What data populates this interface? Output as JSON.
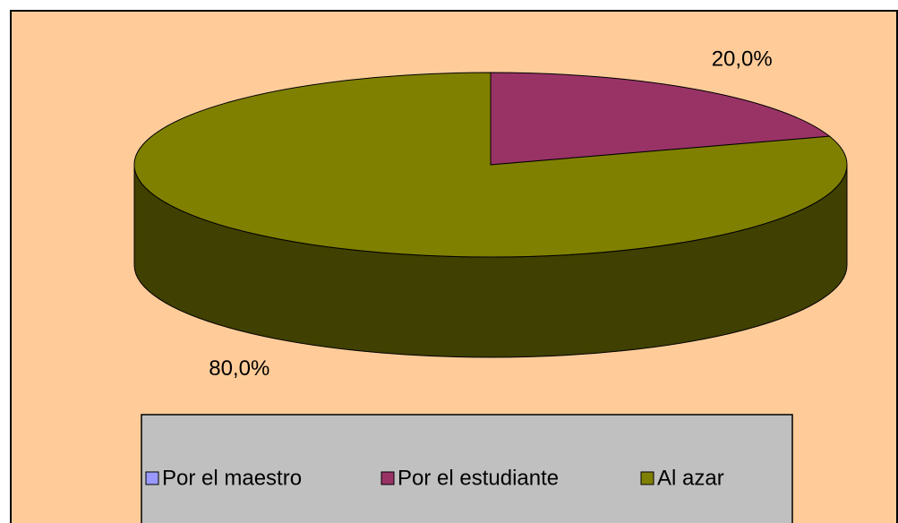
{
  "chart_data": {
    "type": "pie",
    "categories": [
      "Por el maestro",
      "Por el estudiante",
      "Al azar"
    ],
    "values": [
      0,
      20,
      80
    ],
    "value_labels": [
      null,
      "20,0%",
      "80,0%"
    ],
    "colors": [
      "#9999ff",
      "#993366",
      "#808000"
    ],
    "legend": "bottom"
  }
}
